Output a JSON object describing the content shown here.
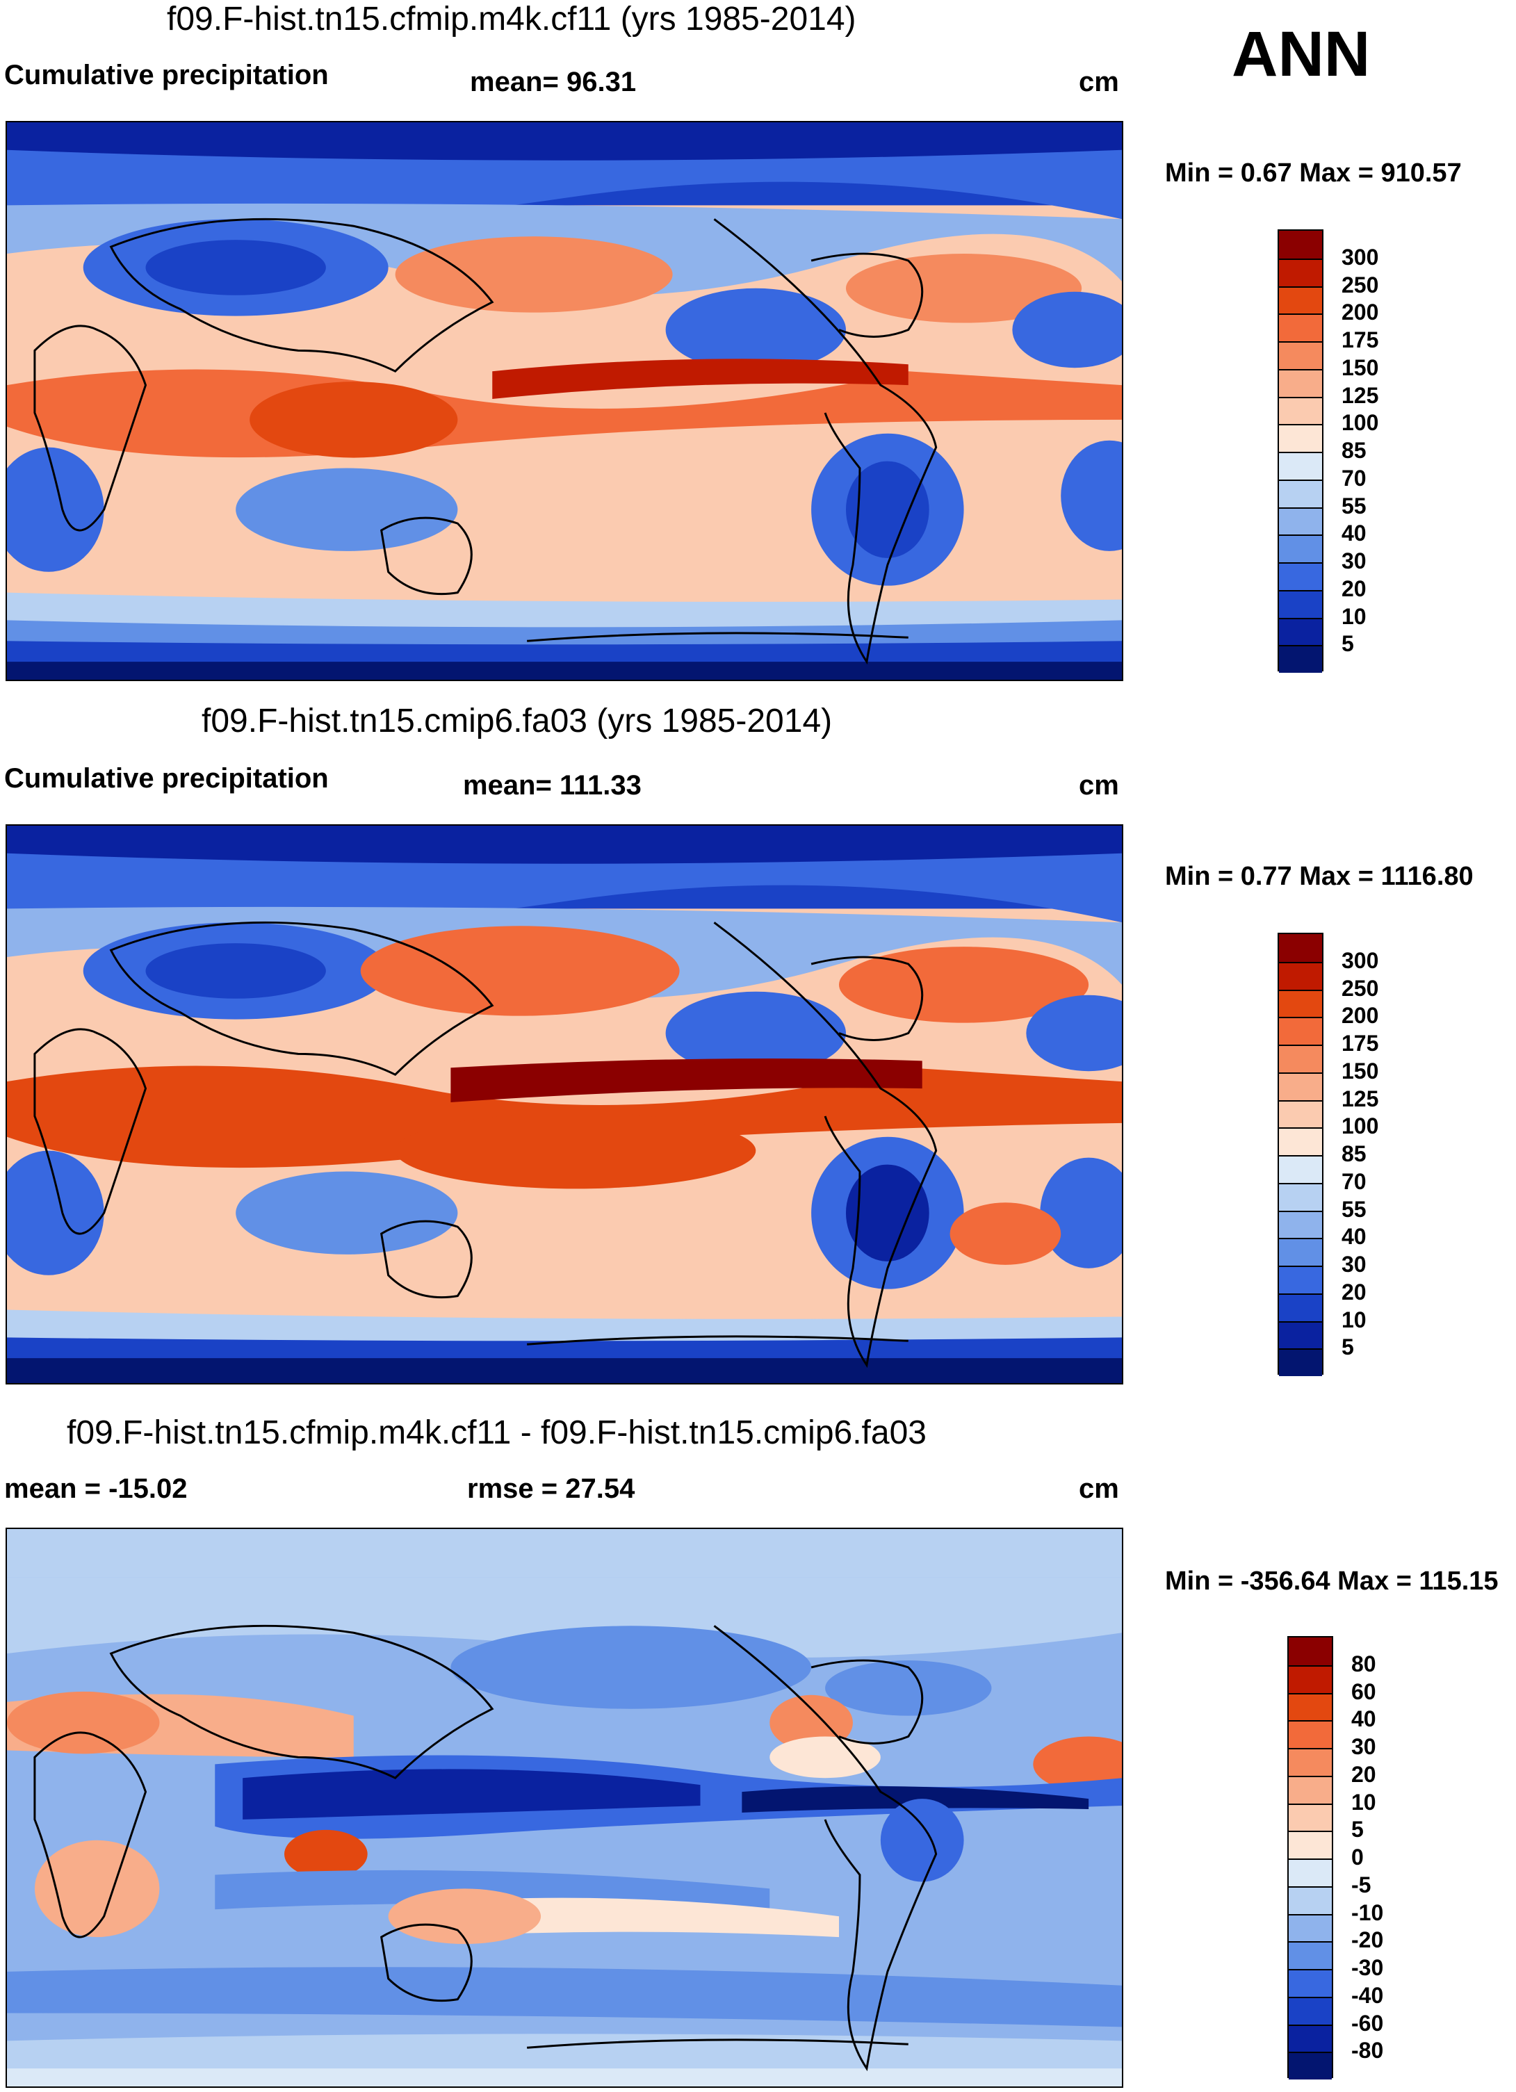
{
  "season": "ANN",
  "panels": [
    {
      "id": "p1",
      "title": "f09.F-hist.tn15.cfmip.m4k.cf11 (yrs 1985-2014)",
      "left_label": "Cumulative precipitation",
      "center_label": "mean=  96.31",
      "units": "cm",
      "minmax": "Min =   0.67 Max = 910.57",
      "colorbar": {
        "labels": [
          "300",
          "250",
          "200",
          "175",
          "150",
          "125",
          "100",
          "85",
          "70",
          "55",
          "40",
          "30",
          "20",
          "10",
          "5"
        ],
        "colors": [
          "#8b0000",
          "#c01a00",
          "#e34810",
          "#f26a3a",
          "#f58a5e",
          "#f8ad8a",
          "#fbcbb0",
          "#fde6d6",
          "#dbe9f7",
          "#b7d1f2",
          "#8fb3ec",
          "#6190e6",
          "#3868e0",
          "#1a42c6",
          "#0a22a0",
          "#031570"
        ]
      }
    },
    {
      "id": "p2",
      "title": "f09.F-hist.tn15.cmip6.fa03 (yrs 1985-2014)",
      "left_label": "Cumulative precipitation",
      "center_label": "mean= 111.33",
      "units": "cm",
      "minmax": "Min =   0.77 Max = 1116.80",
      "colorbar": {
        "labels": [
          "300",
          "250",
          "200",
          "175",
          "150",
          "125",
          "100",
          "85",
          "70",
          "55",
          "40",
          "30",
          "20",
          "10",
          "5"
        ],
        "colors": [
          "#8b0000",
          "#c01a00",
          "#e34810",
          "#f26a3a",
          "#f58a5e",
          "#f8ad8a",
          "#fbcbb0",
          "#fde6d6",
          "#dbe9f7",
          "#b7d1f2",
          "#8fb3ec",
          "#6190e6",
          "#3868e0",
          "#1a42c6",
          "#0a22a0",
          "#031570"
        ]
      }
    },
    {
      "id": "p3",
      "title": "f09.F-hist.tn15.cfmip.m4k.cf11 - f09.F-hist.tn15.cmip6.fa03",
      "left_label": "mean = -15.02",
      "center_label": "rmse =  27.54",
      "units": "cm",
      "minmax": "Min = -356.64 Max = 115.15",
      "colorbar": {
        "labels": [
          "80",
          "60",
          "40",
          "30",
          "20",
          "10",
          "5",
          "0",
          "-5",
          "-10",
          "-20",
          "-30",
          "-40",
          "-60",
          "-80"
        ],
        "colors": [
          "#8b0000",
          "#c01a00",
          "#e34810",
          "#f26a3a",
          "#f58a5e",
          "#f8ad8a",
          "#fbcbb0",
          "#fde6d6",
          "#dbe9f7",
          "#b7d1f2",
          "#8fb3ec",
          "#6190e6",
          "#3868e0",
          "#1a42c6",
          "#0a22a0",
          "#031570"
        ]
      }
    }
  ]
}
